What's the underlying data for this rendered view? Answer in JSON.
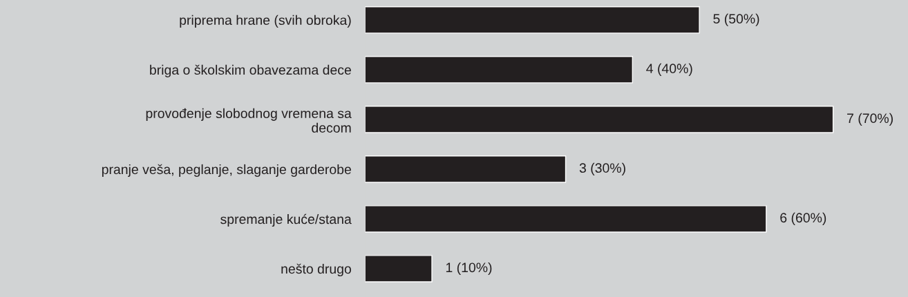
{
  "chart_data": {
    "type": "bar",
    "orientation": "horizontal",
    "categories": [
      "priprema hrane (svih obroka)",
      "briga o školskim obavezama dece",
      "provođenje slobodnog vremena sa\ndecom",
      "pranje veša, peglanje, slaganje garderobe",
      "spremanje kuće/stana",
      "nešto drugo"
    ],
    "values": [
      5,
      4,
      7,
      3,
      6,
      1
    ],
    "value_labels": [
      "5 (50%)",
      "4 (40%)",
      "7 (70%)",
      "3 (30%)",
      "6 (60%)",
      "1 (10%)"
    ],
    "color": "#231f20",
    "grid": false,
    "legend": false
  }
}
